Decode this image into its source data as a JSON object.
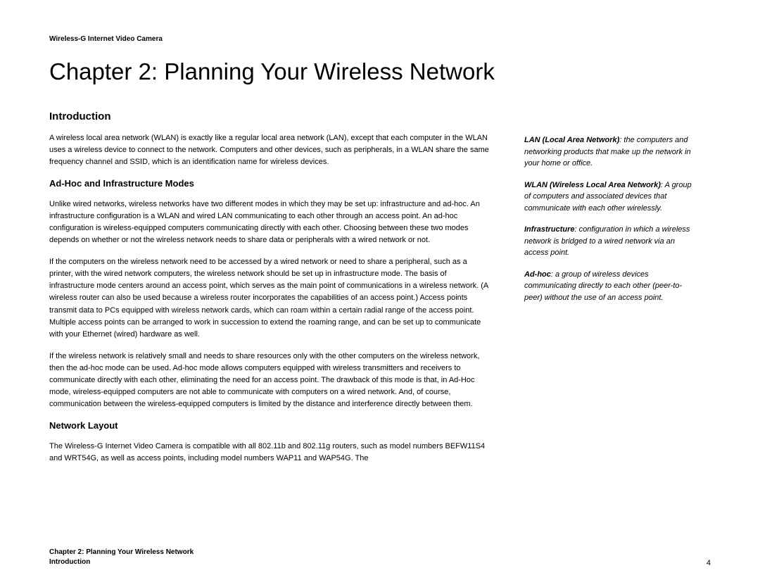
{
  "header": {
    "product": "Wireless-G Internet Video Camera"
  },
  "chapter": {
    "title": "Chapter 2: Planning Your Wireless Network"
  },
  "sections": {
    "introduction": {
      "heading": "Introduction",
      "p1": "A wireless local area network (WLAN) is exactly like a regular local area network (LAN), except that each computer in the WLAN uses a wireless device to connect to the network. Computers and other devices, such as peripherals, in a WLAN share the same frequency channel and SSID, which is an identification name for wireless devices."
    },
    "adhoc": {
      "heading": "Ad-Hoc and Infrastructure Modes",
      "p1": "Unlike wired networks, wireless networks have two different modes in which they may be set up: infrastructure and ad-hoc.  An infrastructure configuration is a WLAN and wired LAN communicating to each other through an access point. An ad-hoc configuration is wireless-equipped computers communicating directly with each other. Choosing between these two modes depends on whether or not the wireless network needs to share data or peripherals with a wired network or not.",
      "p2": "If the computers on the wireless network need to be accessed by a wired network or need to share a peripheral, such as a printer, with the wired network computers, the wireless network should be set up in infrastructure mode. The basis of infrastructure mode centers around an access point, which serves as the main point of communications in a wireless network. (A wireless router can also be used because a wireless router incorporates the capabilities of an access point.) Access points transmit data to PCs equipped with wireless network cards, which can roam within a certain radial range of the access point.  Multiple access points can be arranged to work in succession to extend the roaming range, and can be set up to communicate with your Ethernet (wired) hardware as well.",
      "p3": "If the wireless network is relatively small and needs to share resources only with the other computers on the wireless network, then the ad-hoc mode can be used. Ad-hoc mode allows computers equipped with wireless transmitters and receivers to communicate directly with each other, eliminating the need for an access point. The drawback of this mode is that, in Ad-Hoc mode, wireless-equipped computers are not able to communicate with computers on a wired network. And, of course, communication between the wireless-equipped computers is limited by the distance and interference directly between them."
    },
    "layout": {
      "heading": "Network Layout",
      "p1": "The Wireless-G Internet Video Camera is compatible with all 802.11b and 802.11g routers, such as model numbers BEFW11S4 and WRT54G, as well as access points, including model numbers WAP11 and WAP54G. The"
    }
  },
  "sidebar": {
    "lan": {
      "term": "LAN (Local Area Network)",
      "def": ": the computers and networking products that make up the network in your home or office."
    },
    "wlan": {
      "term": "WLAN (Wireless Local Area Network)",
      "def": ": A group of computers and associated devices that communicate with each other wirelessly."
    },
    "infra": {
      "term": "Infrastructure",
      "def": ": configuration in which a wireless network is bridged to a wired network via an access point."
    },
    "adhoc": {
      "term": "Ad-hoc",
      "def": ": a group of wireless devices communicating directly to each other (peer-to-peer) without the use of an access point."
    }
  },
  "footer": {
    "chapter": "Chapter 2: Planning Your Wireless Network",
    "section": "Introduction",
    "page": "4"
  }
}
